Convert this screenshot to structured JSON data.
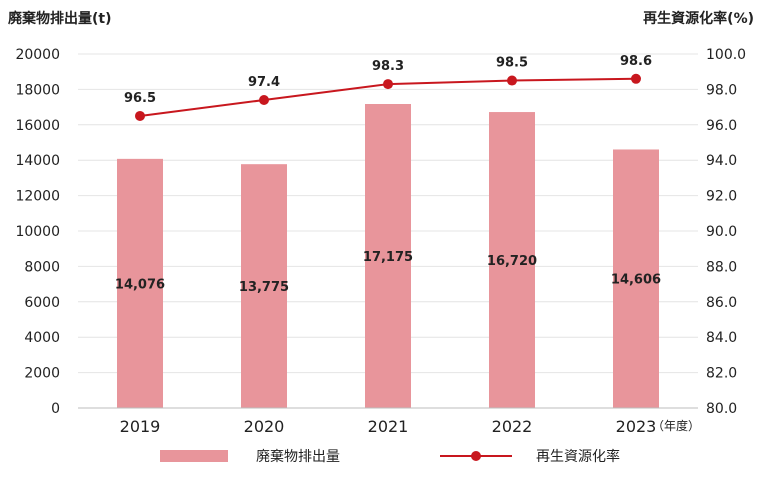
{
  "chart_data": {
    "type": "bar",
    "categories": [
      "2019",
      "2020",
      "2021",
      "2022",
      "2023"
    ],
    "x_unit_label": "（年度）",
    "left_axis": {
      "title": "廃棄物排出量(t)",
      "ylim": [
        0,
        20000
      ],
      "ticks": [
        "0",
        "2000",
        "4000",
        "6000",
        "8000",
        "10000",
        "12000",
        "14000",
        "16000",
        "18000",
        "20000"
      ]
    },
    "right_axis": {
      "title": "再生資源化率(%)",
      "ylim": [
        80,
        100
      ],
      "ticks": [
        "80.0",
        "82.0",
        "84.0",
        "86.0",
        "88.0",
        "90.0",
        "92.0",
        "94.0",
        "96.0",
        "98.0",
        "100.0"
      ]
    },
    "series": [
      {
        "name": "廃棄物排出量",
        "type": "bar",
        "axis": "left",
        "values": [
          14076,
          13775,
          17175,
          16720,
          14606
        ],
        "labels": [
          "14,076",
          "13,775",
          "17,175",
          "16,720",
          "14,606"
        ],
        "color": "#e8959b"
      },
      {
        "name": "再生資源化率",
        "type": "line",
        "axis": "right",
        "values": [
          96.5,
          97.4,
          98.3,
          98.5,
          98.6
        ],
        "labels": [
          "96.5",
          "97.4",
          "98.3",
          "98.5",
          "98.6"
        ],
        "color": "#c8171e"
      }
    ],
    "grid": true,
    "legend_position": "bottom"
  }
}
